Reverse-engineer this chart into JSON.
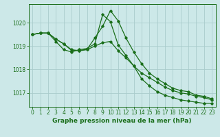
{
  "background_color": "#cce8e8",
  "grid_color": "#aacccc",
  "line_color": "#1a6e1a",
  "xlabel": "Graphe pression niveau de la mer (hPa)",
  "xlabel_fontsize": 6.5,
  "tick_fontsize": 5.5,
  "ylim": [
    1016.4,
    1020.8
  ],
  "xlim": [
    -0.5,
    23.5
  ],
  "yticks": [
    1017,
    1018,
    1019,
    1020
  ],
  "xticks": [
    0,
    1,
    2,
    3,
    4,
    5,
    6,
    7,
    8,
    9,
    10,
    11,
    12,
    13,
    14,
    15,
    16,
    17,
    18,
    19,
    20,
    21,
    22,
    23
  ],
  "series": [
    [
      1019.5,
      1019.56,
      1019.56,
      1019.3,
      1019.1,
      1018.85,
      1018.8,
      1018.85,
      1019.0,
      1019.15,
      1019.2,
      1018.8,
      1018.5,
      1018.15,
      1017.85,
      1017.65,
      1017.45,
      1017.25,
      1017.1,
      1017.0,
      1016.95,
      1016.85,
      1016.8,
      1016.7
    ],
    [
      1019.5,
      1019.56,
      1019.56,
      1019.2,
      1018.85,
      1018.75,
      1018.85,
      1018.9,
      1019.1,
      1020.35,
      1020.05,
      1019.05,
      1018.6,
      1018.15,
      1017.6,
      1017.3,
      1017.05,
      1016.9,
      1016.8,
      1016.7,
      1016.65,
      1016.6,
      1016.55,
      1016.55
    ],
    [
      1019.5,
      1019.56,
      1019.56,
      1019.3,
      1019.1,
      1018.82,
      1018.82,
      1018.86,
      1019.35,
      1019.85,
      1020.52,
      1020.08,
      1019.35,
      1018.75,
      1018.25,
      1017.85,
      1017.6,
      1017.4,
      1017.2,
      1017.1,
      1017.05,
      1016.9,
      1016.85,
      1016.75
    ]
  ]
}
